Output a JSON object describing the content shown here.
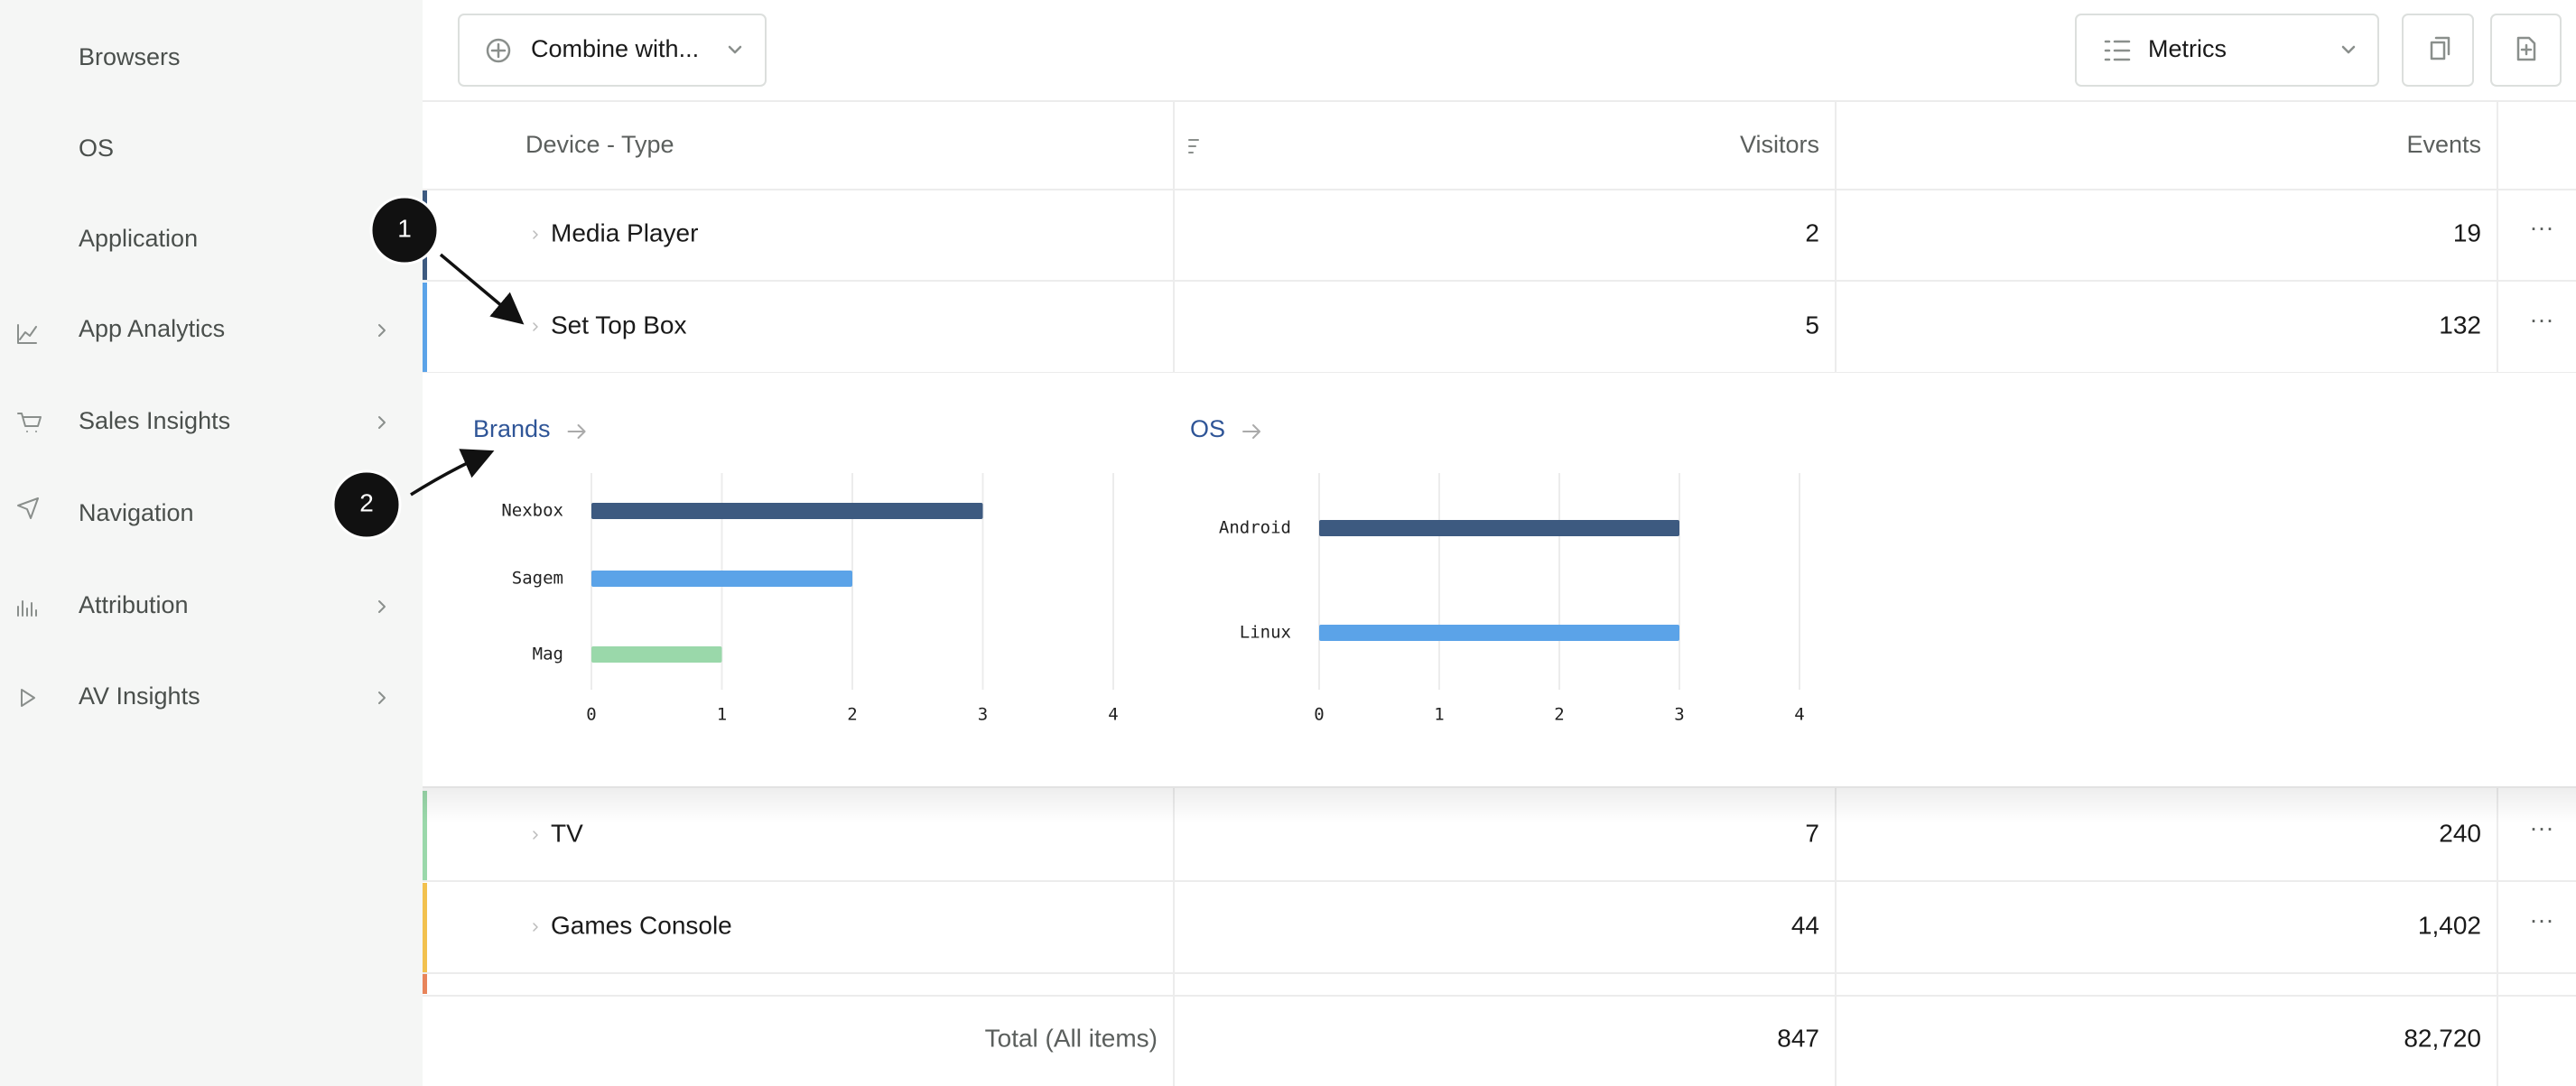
{
  "sidebar": {
    "items": [
      "Browsers",
      "OS",
      "Application",
      "App Analytics",
      "Sales Insights",
      "Navigation",
      "Attribution",
      "AV Insights"
    ]
  },
  "toolbar": {
    "combine": "Combine with...",
    "metrics": "Metrics"
  },
  "table": {
    "headers": [
      "Device - Type",
      "Visitors",
      "Events"
    ],
    "rows": [
      [
        "Media Player",
        2,
        19
      ],
      [
        "Set Top Box",
        5,
        132
      ],
      [
        "TV",
        7,
        240
      ],
      [
        "Games Console",
        44,
        "1,402"
      ]
    ],
    "total": [
      "Total (All items)",
      847,
      "82,720"
    ]
  },
  "chart_data": [
    {
      "type": "bar",
      "orientation": "horizontal",
      "title": "Brands",
      "categories": [
        "Nexbox",
        "Sagem",
        "Mag"
      ],
      "values": [
        3,
        2,
        1
      ],
      "colors": [
        "#3d5a80",
        "#5ba3e8",
        "#9ad8aa"
      ],
      "xlim": [
        0,
        4
      ],
      "xticks": [
        0,
        1,
        2,
        3,
        4
      ],
      "grid": true
    },
    {
      "type": "bar",
      "orientation": "horizontal",
      "title": "OS",
      "categories": [
        "Android",
        "Linux"
      ],
      "values": [
        3,
        3
      ],
      "colors": [
        "#3d5a80",
        "#5ba3e8"
      ],
      "xlim": [
        0,
        4
      ],
      "xticks": [
        0,
        1,
        2,
        3,
        4
      ],
      "grid": true
    }
  ],
  "annotations": [
    "1",
    "2"
  ]
}
